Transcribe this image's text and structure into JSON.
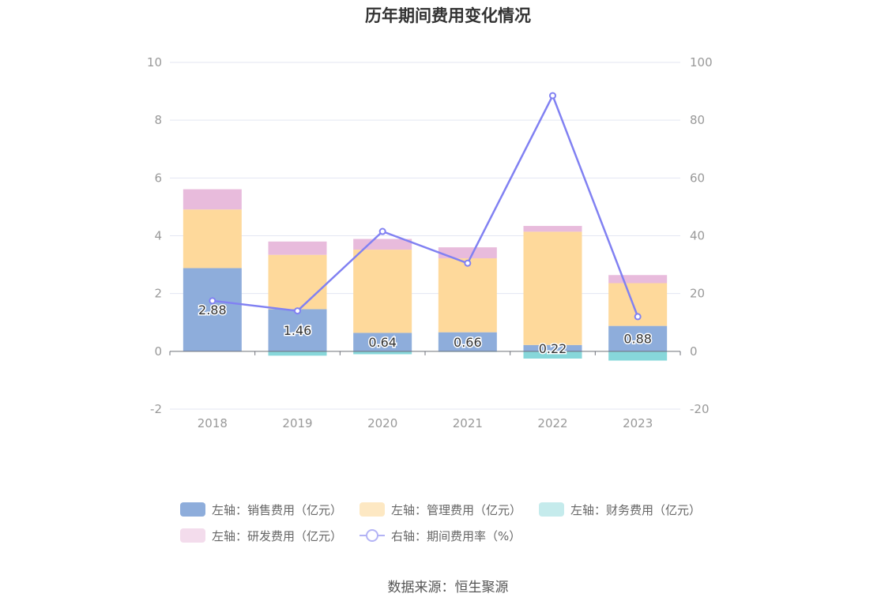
{
  "title": "历年期间费用变化情况",
  "source": "数据来源：恒生聚源",
  "chart_data": {
    "type": "bar",
    "stacked": true,
    "categories": [
      "2018",
      "2019",
      "2020",
      "2021",
      "2022",
      "2023"
    ],
    "series": [
      {
        "name": "左轴：销售费用（亿元）",
        "axis": "left",
        "type": "bar",
        "color": "#8eaddb",
        "values": [
          2.88,
          1.46,
          0.64,
          0.66,
          0.22,
          0.88
        ],
        "labels": [
          "2.88",
          "1.46",
          "0.64",
          "0.66",
          "0.22",
          "0.88"
        ]
      },
      {
        "name": "左轴：管理费用（亿元）",
        "axis": "left",
        "type": "bar",
        "color": "#fed99b",
        "values": [
          2.03,
          1.88,
          2.88,
          2.56,
          3.92,
          1.48
        ]
      },
      {
        "name": "左轴：财务费用（亿元）",
        "axis": "left",
        "type": "bar",
        "color": "#87d7da",
        "values": [
          0.0,
          -0.15,
          -0.1,
          -0.02,
          -0.25,
          -0.32
        ]
      },
      {
        "name": "左轴：研发费用（亿元）",
        "axis": "left",
        "type": "bar",
        "color": "#e8bbdc",
        "values": [
          0.7,
          0.46,
          0.37,
          0.38,
          0.2,
          0.28
        ]
      },
      {
        "name": "右轴：期间费用率（%）",
        "axis": "right",
        "type": "line",
        "color": "#8181f2",
        "values": [
          17.5,
          14.0,
          41.5,
          30.5,
          88.5,
          12.0
        ]
      }
    ],
    "left_axis": {
      "min": -2,
      "max": 10,
      "ticks": [
        "-2",
        "0",
        "2",
        "4",
        "6",
        "8",
        "10"
      ]
    },
    "right_axis": {
      "min": -20,
      "max": 100,
      "ticks": [
        "-20",
        "0",
        "20",
        "40",
        "60",
        "80",
        "100"
      ]
    },
    "legend_position": "bottom",
    "grid": true
  }
}
